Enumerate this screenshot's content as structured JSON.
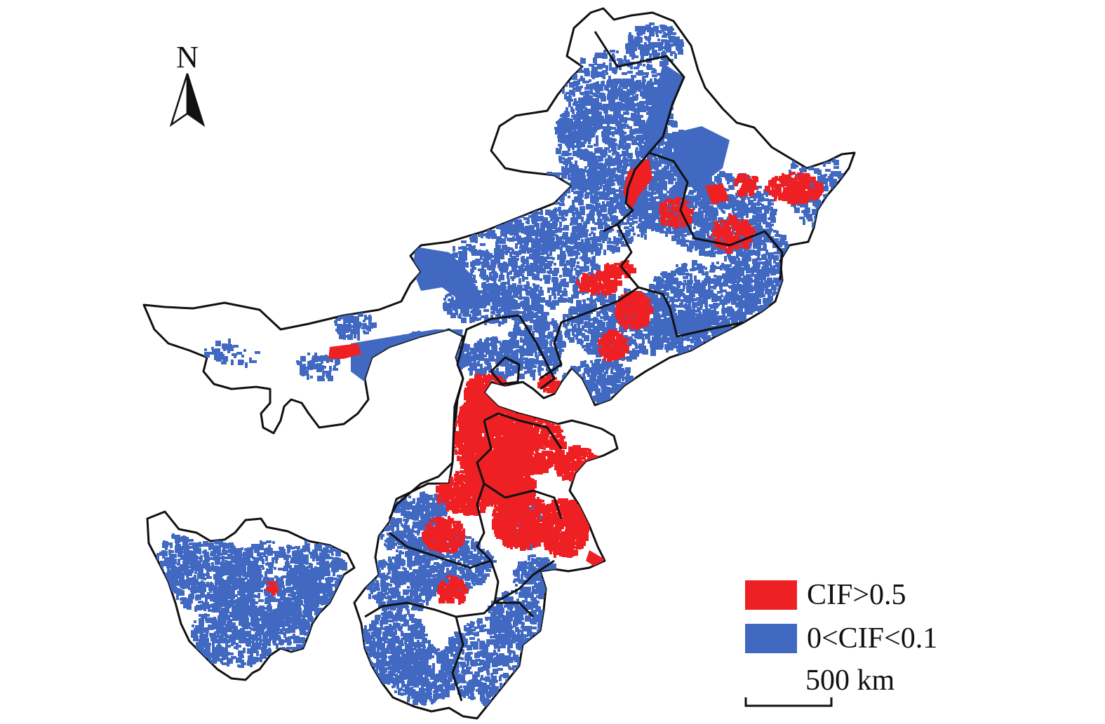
{
  "north_arrow": {
    "label": "N"
  },
  "legend": {
    "items": [
      {
        "label": "CIF>0.5",
        "color": "#ee2024"
      },
      {
        "label": "0<CIF<0.1",
        "color": "#4169c2"
      }
    ]
  },
  "scale_bar": {
    "label": "500 km"
  },
  "colors": {
    "high": "#ee2024",
    "low": "#4169c2",
    "boundary": "#111111"
  }
}
